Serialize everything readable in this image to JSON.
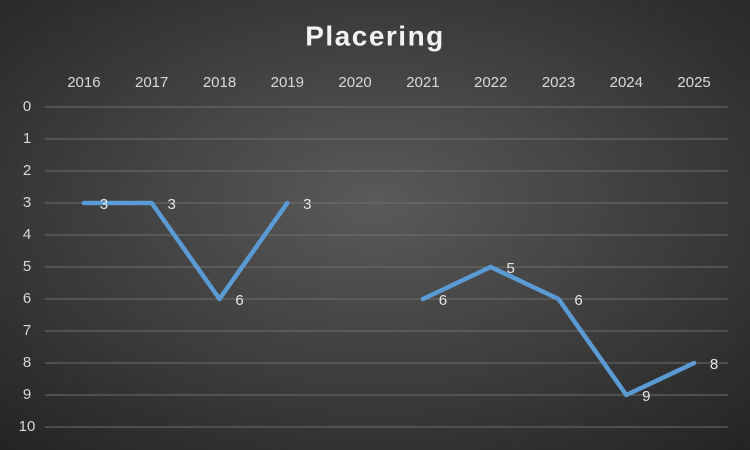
{
  "chart_data": {
    "type": "line",
    "title": "Placering",
    "categories": [
      "2016",
      "2017",
      "2018",
      "2019",
      "2020",
      "2021",
      "2022",
      "2023",
      "2024",
      "2025"
    ],
    "values": [
      3,
      3,
      6,
      3,
      null,
      6,
      5,
      6,
      9,
      8
    ],
    "color": "#5b9bd5",
    "ylim": [
      0,
      10
    ],
    "yticks": [
      0,
      1,
      2,
      3,
      4,
      5,
      6,
      7,
      8,
      9,
      10
    ],
    "y_inverted": true,
    "grid": true
  }
}
